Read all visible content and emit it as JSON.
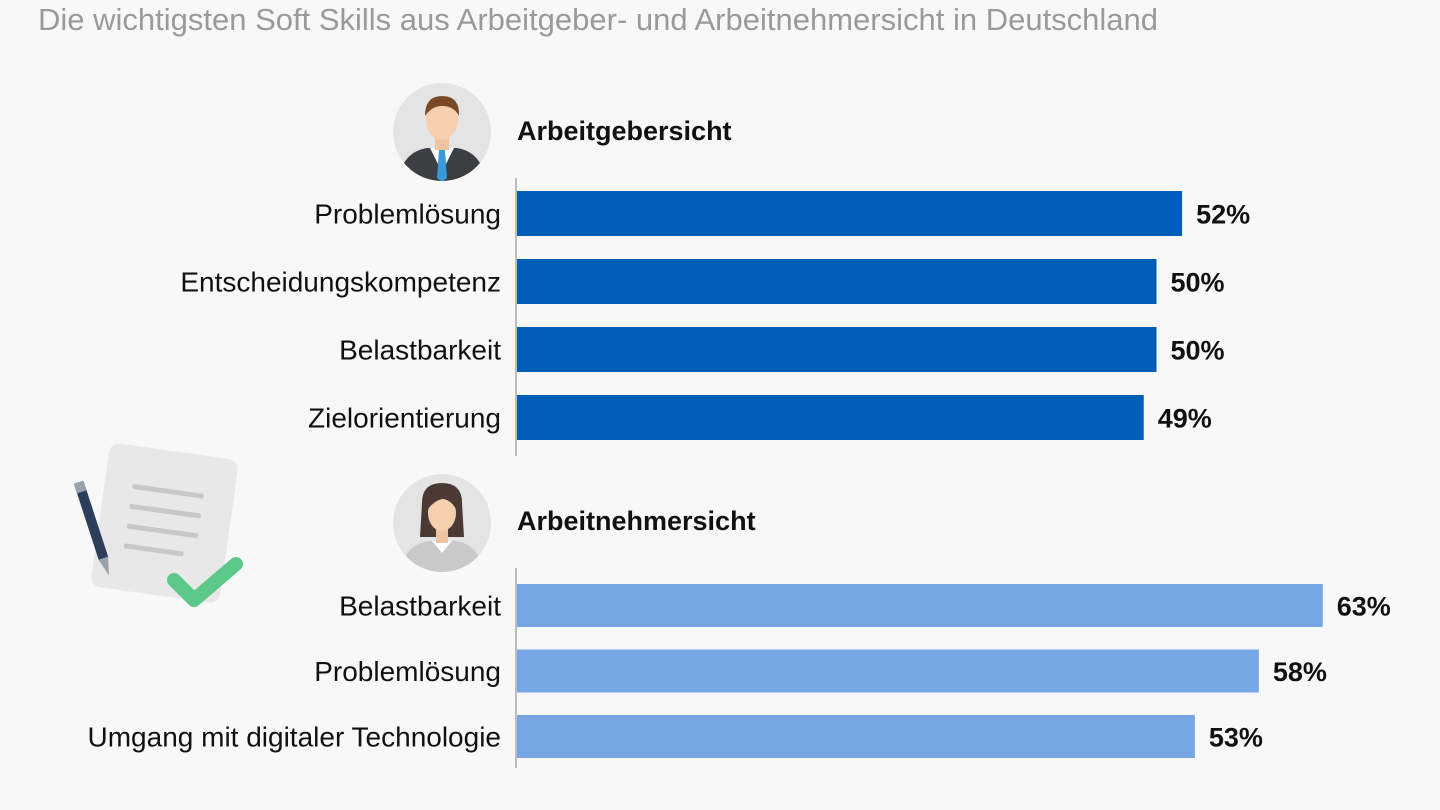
{
  "subtitle": "Die wichtigsten Soft Skills aus Arbeitgeber- und Arbeitnehmersicht in Deutschland",
  "icons": {
    "employer": "businessman-avatar-icon",
    "employee": "woman-avatar-icon",
    "document": "document-with-pen-and-checkmark-icon"
  },
  "colors": {
    "employer_bar": "#005eb8",
    "employee_bar": "#76a6e3",
    "check": "#5cc98a"
  },
  "chart_data": [
    {
      "type": "bar",
      "orientation": "horizontal",
      "title": "Arbeitgebersicht",
      "categories": [
        "Problemlösung",
        "Entscheidungskompetenz",
        "Belastbarkeit",
        "Zielorientierung"
      ],
      "values": [
        52,
        50,
        50,
        49
      ],
      "value_labels": [
        "52%",
        "50%",
        "50%",
        "49%"
      ],
      "unit": "%",
      "color": "#005eb8"
    },
    {
      "type": "bar",
      "orientation": "horizontal",
      "title": "Arbeitnehmersicht",
      "categories": [
        "Belastbarkeit",
        "Problemlösung",
        "Umgang mit digitaler Technologie"
      ],
      "values": [
        63,
        58,
        53
      ],
      "value_labels": [
        "63%",
        "58%",
        "53%"
      ],
      "unit": "%",
      "color": "#76a6e3"
    }
  ]
}
